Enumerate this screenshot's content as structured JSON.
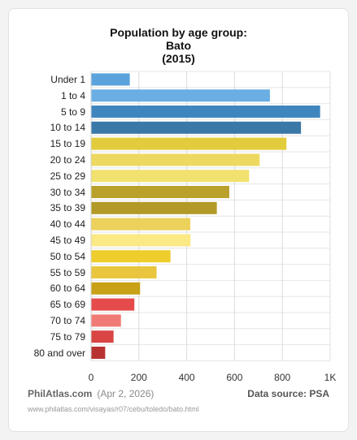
{
  "chart_data": {
    "type": "bar",
    "orientation": "horizontal",
    "title_lines": [
      "Population by age group:",
      "Bato",
      "(2015)"
    ],
    "categories": [
      "Under 1",
      "1 to 4",
      "5 to 9",
      "10 to 14",
      "15 to 19",
      "20 to 24",
      "25 to 29",
      "30 to 34",
      "35 to 39",
      "40 to 44",
      "45 to 49",
      "50 to 54",
      "55 to 59",
      "60 to 64",
      "65 to 69",
      "70 to 74",
      "75 to 79",
      "80 and over"
    ],
    "values": [
      162,
      748,
      958,
      878,
      817,
      705,
      661,
      578,
      526,
      415,
      416,
      332,
      274,
      205,
      181,
      125,
      94,
      59
    ],
    "colors": [
      "#5ba3dd",
      "#6aaee3",
      "#3f86bf",
      "#3a78a8",
      "#e2cc3b",
      "#edd960",
      "#f1e16f",
      "#b9a12b",
      "#b39a28",
      "#ecd15a",
      "#fbe985",
      "#efcd2c",
      "#e9c63e",
      "#c8a117",
      "#e64b4b",
      "#f07b76",
      "#d94444",
      "#b83232"
    ],
    "x_ticks": [
      "0",
      "200",
      "400",
      "600",
      "800",
      "1K"
    ],
    "xlim": [
      0,
      1000
    ],
    "grid": true
  },
  "footer": {
    "brand": "PhilAtlas.com",
    "date": "(Apr 2, 2026)",
    "source": "Data source: PSA",
    "url": "www.philatlas.com/visayas/r07/cebu/toledo/bato.html"
  }
}
